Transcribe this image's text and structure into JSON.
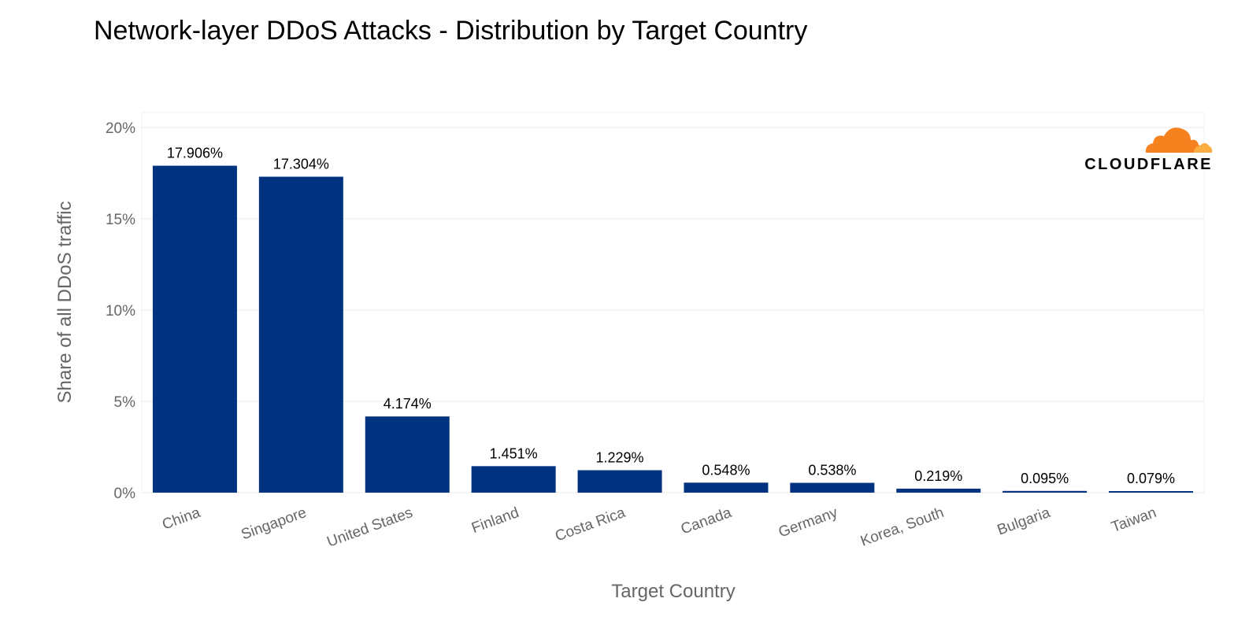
{
  "title": "Network-layer DDoS Attacks - Distribution by Target Country",
  "brand": {
    "name": "CLOUDFLARE",
    "icon": "cloudflare-cloud-icon",
    "colors": {
      "cloud_primary": "#F6821F",
      "cloud_secondary": "#FBAD41"
    }
  },
  "chart_data": {
    "type": "bar",
    "title": "Network-layer DDoS Attacks - Distribution by Target Country",
    "xlabel": "Target Country",
    "ylabel": "Share of all DDoS traffic",
    "categories": [
      "China",
      "Singapore",
      "United States",
      "Finland",
      "Costa Rica",
      "Canada",
      "Germany",
      "Korea, South",
      "Bulgaria",
      "Taiwan"
    ],
    "values": [
      17.906,
      17.304,
      4.174,
      1.451,
      1.229,
      0.548,
      0.538,
      0.219,
      0.095,
      0.079
    ],
    "value_labels": [
      "17.906%",
      "17.304%",
      "4.174%",
      "1.451%",
      "1.229%",
      "0.548%",
      "0.538%",
      "0.219%",
      "0.095%",
      "0.079%"
    ],
    "ylim": [
      0,
      20
    ],
    "yticks": [
      0,
      5,
      10,
      15,
      20
    ],
    "ytick_labels": [
      "0%",
      "5%",
      "10%",
      "15%",
      "20%"
    ],
    "grid": true,
    "legend": "none",
    "colors": {
      "bar": "#00337F",
      "grid": "#EBEBEB",
      "axis_text": "#666666"
    }
  }
}
